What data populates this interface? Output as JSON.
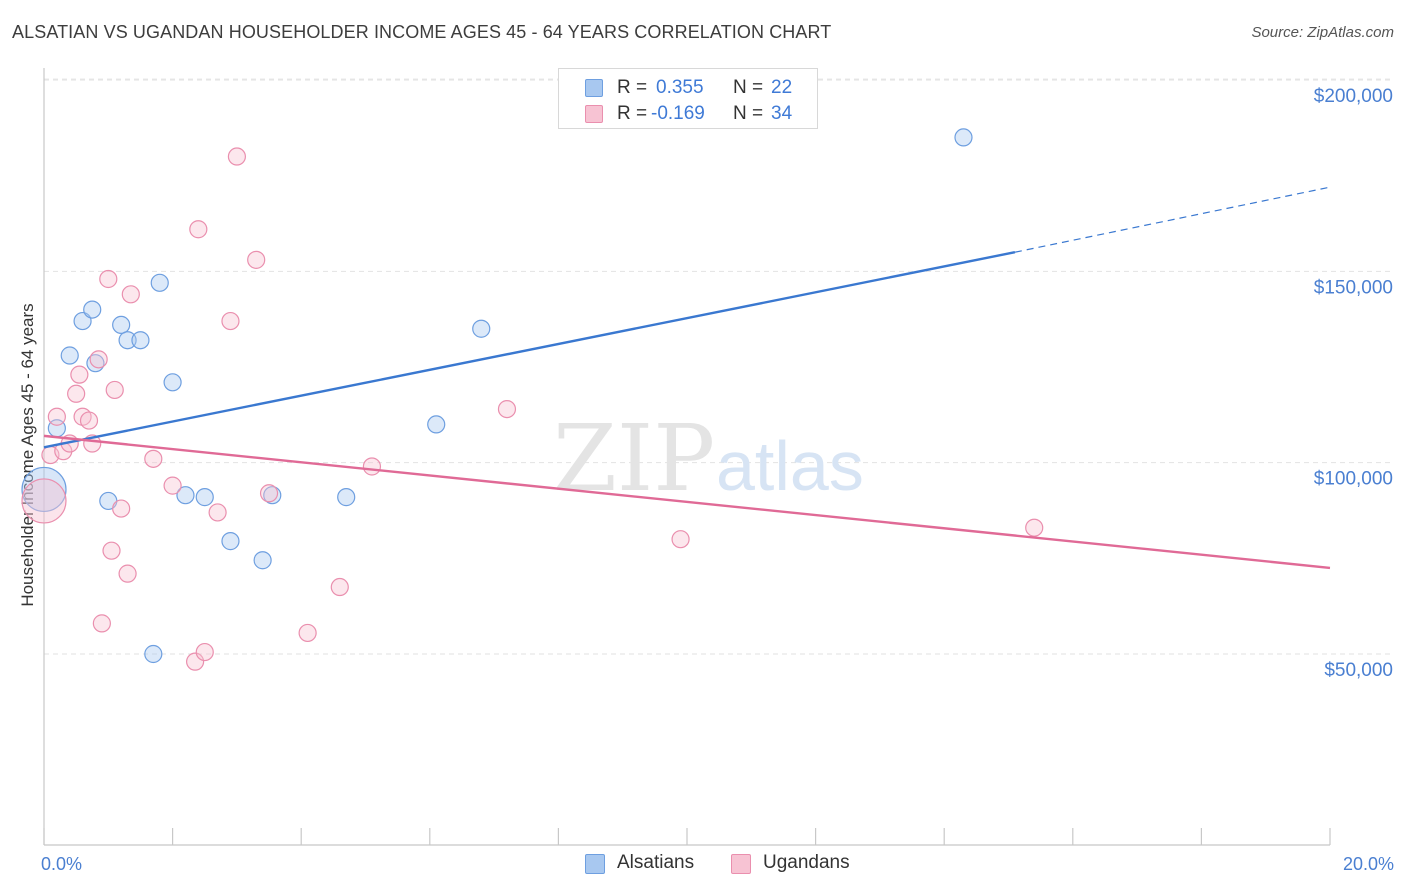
{
  "header": {
    "title": "ALSATIAN VS UGANDAN HOUSEHOLDER INCOME AGES 45 - 64 YEARS CORRELATION CHART",
    "source": "Source: ZipAtlas.com"
  },
  "watermark": {
    "part1": "ZIP",
    "part2": "atlas"
  },
  "stats": {
    "rows": [
      {
        "r_label": "R =",
        "r_value": "0.355",
        "n_label": "N =",
        "n_value": "22",
        "color": "#a8c8f0",
        "border": "#6e9fe0"
      },
      {
        "r_label": "R =",
        "r_value": "-0.169",
        "n_label": "N =",
        "n_value": "34",
        "color": "#f7c3d3",
        "border": "#ea8fae"
      }
    ]
  },
  "legend": {
    "items": [
      {
        "label": "Alsatians",
        "color": "#a8c8f0",
        "border": "#6e9fe0"
      },
      {
        "label": "Ugandans",
        "color": "#f7c3d3",
        "border": "#ea8fae"
      }
    ]
  },
  "chart_data": {
    "type": "scatter",
    "title": "ALSATIAN VS UGANDAN HOUSEHOLDER INCOME AGES 45 - 64 YEARS CORRELATION CHART",
    "xlabel": "",
    "ylabel": "Householder Income Ages 45 - 64 years",
    "xlim": [
      0,
      20
    ],
    "ylim": [
      0,
      205000
    ],
    "x_tick_labels": [
      {
        "value": 0,
        "label": "0.0%"
      },
      {
        "value": 20,
        "label": "20.0%"
      }
    ],
    "y_tick_labels": [
      {
        "value": 50000,
        "label": "$50,000"
      },
      {
        "value": 100000,
        "label": "$100,000"
      },
      {
        "value": 150000,
        "label": "$150,000"
      },
      {
        "value": 200000,
        "label": "$200,000"
      }
    ],
    "grid": "horizontal dashed",
    "legend_position": "bottom-center",
    "series": [
      {
        "name": "Alsatians",
        "color": "#6e9fe0",
        "fill": "#a8c8f0",
        "trend_color": "#3a78d0",
        "r": 0.355,
        "n": 22,
        "trend": {
          "x0": 0,
          "y0": 104000,
          "x1": 15.1,
          "y1": 155000,
          "dash_to_x": 20,
          "dash_to_y": 172000
        },
        "points": [
          {
            "x": 0.0,
            "y": 93000,
            "big": true
          },
          {
            "x": 0.2,
            "y": 109000
          },
          {
            "x": 0.4,
            "y": 128000
          },
          {
            "x": 0.6,
            "y": 137000
          },
          {
            "x": 0.75,
            "y": 140000
          },
          {
            "x": 0.8,
            "y": 126000
          },
          {
            "x": 1.0,
            "y": 90000
          },
          {
            "x": 1.2,
            "y": 136000
          },
          {
            "x": 1.3,
            "y": 132000
          },
          {
            "x": 1.5,
            "y": 132000
          },
          {
            "x": 1.7,
            "y": 50000
          },
          {
            "x": 1.8,
            "y": 147000
          },
          {
            "x": 2.0,
            "y": 121000
          },
          {
            "x": 2.2,
            "y": 91500
          },
          {
            "x": 2.5,
            "y": 91000
          },
          {
            "x": 2.9,
            "y": 79500
          },
          {
            "x": 3.4,
            "y": 74500
          },
          {
            "x": 3.55,
            "y": 91500
          },
          {
            "x": 4.7,
            "y": 91000
          },
          {
            "x": 6.1,
            "y": 110000
          },
          {
            "x": 6.8,
            "y": 135000
          },
          {
            "x": 14.3,
            "y": 185000
          }
        ]
      },
      {
        "name": "Ugandans",
        "color": "#ea8fae",
        "fill": "#f7c3d3",
        "trend_color": "#e06a96",
        "r": -0.169,
        "n": 34,
        "trend": {
          "x0": 0,
          "y0": 107000,
          "x1": 20,
          "y1": 72500
        },
        "points": [
          {
            "x": 0.0,
            "y": 90000,
            "big": true
          },
          {
            "x": 0.1,
            "y": 102000
          },
          {
            "x": 0.2,
            "y": 112000
          },
          {
            "x": 0.3,
            "y": 103000
          },
          {
            "x": 0.4,
            "y": 105000
          },
          {
            "x": 0.5,
            "y": 118000
          },
          {
            "x": 0.55,
            "y": 123000
          },
          {
            "x": 0.6,
            "y": 112000
          },
          {
            "x": 0.7,
            "y": 111000
          },
          {
            "x": 0.75,
            "y": 105000
          },
          {
            "x": 0.85,
            "y": 127000
          },
          {
            "x": 0.9,
            "y": 58000
          },
          {
            "x": 1.0,
            "y": 148000
          },
          {
            "x": 1.05,
            "y": 77000
          },
          {
            "x": 1.1,
            "y": 119000
          },
          {
            "x": 1.2,
            "y": 88000
          },
          {
            "x": 1.3,
            "y": 71000
          },
          {
            "x": 1.35,
            "y": 144000
          },
          {
            "x": 1.7,
            "y": 101000
          },
          {
            "x": 2.0,
            "y": 94000
          },
          {
            "x": 2.35,
            "y": 48000
          },
          {
            "x": 2.4,
            "y": 161000
          },
          {
            "x": 2.5,
            "y": 50500
          },
          {
            "x": 2.7,
            "y": 87000
          },
          {
            "x": 2.9,
            "y": 137000
          },
          {
            "x": 3.0,
            "y": 180000
          },
          {
            "x": 3.3,
            "y": 153000
          },
          {
            "x": 3.5,
            "y": 92000
          },
          {
            "x": 4.1,
            "y": 55500
          },
          {
            "x": 4.6,
            "y": 67500
          },
          {
            "x": 5.1,
            "y": 99000
          },
          {
            "x": 7.2,
            "y": 114000
          },
          {
            "x": 9.9,
            "y": 80000
          },
          {
            "x": 15.4,
            "y": 83000
          }
        ]
      }
    ]
  }
}
